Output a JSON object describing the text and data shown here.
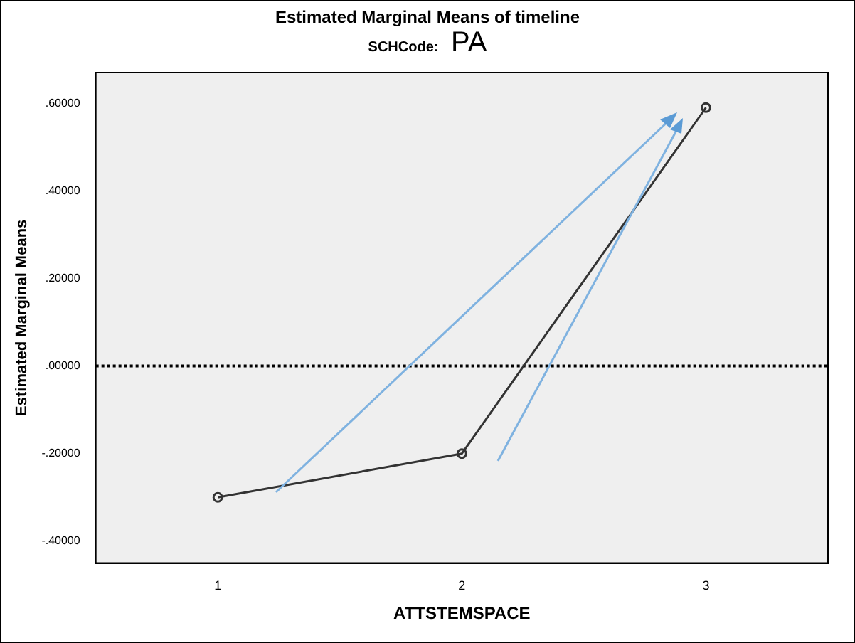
{
  "chart_data": {
    "type": "line",
    "title": "Estimated Marginal Means of timeline",
    "subtitle": "SCHCode: PA",
    "xlabel": "ATTSTEMSPACE",
    "ylabel": "Estimated Marginal Means",
    "categories": [
      "1",
      "2",
      "3"
    ],
    "series": [
      {
        "color": "#333333",
        "values": [
          -0.3,
          -0.2,
          0.59
        ]
      }
    ],
    "ylim": [
      -0.45,
      0.67
    ],
    "yticks": [
      {
        "value": -0.4,
        "label": "-.40000"
      },
      {
        "value": -0.2,
        "label": "-.20000"
      },
      {
        "value": 0,
        "label": ".00000"
      },
      {
        "value": 0.2,
        "label": ".20000"
      },
      {
        "value": 0.4,
        "label": ".40000"
      },
      {
        "value": 0.6,
        "label": ".60000"
      }
    ],
    "ref_lines": [
      {
        "axis": "y",
        "value": 0,
        "color": "#000000",
        "line_style": "dotted"
      }
    ],
    "marker": "circle",
    "line_style": "solid",
    "grid": false,
    "legend": false
  }
}
